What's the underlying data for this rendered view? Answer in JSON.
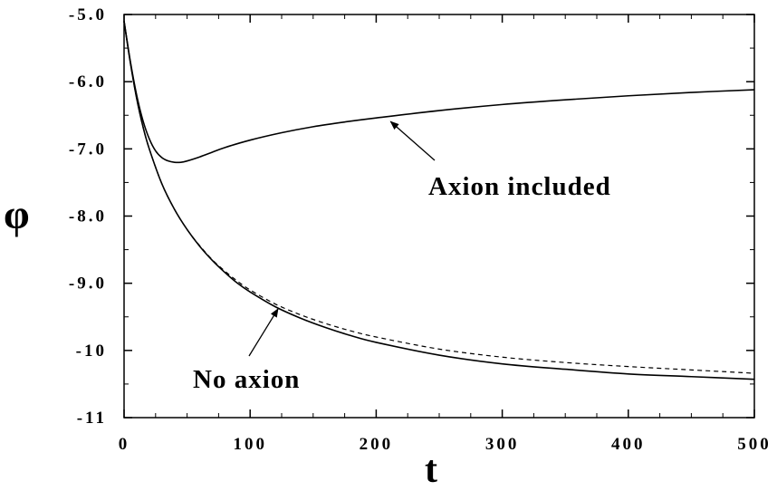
{
  "chart_data": {
    "type": "line",
    "title": "",
    "xlabel": "t",
    "ylabel": "φ",
    "xlim": [
      0,
      500
    ],
    "ylim": [
      -11,
      -5
    ],
    "x_ticks": [
      0,
      100,
      200,
      300,
      400,
      500
    ],
    "x_tick_labels": [
      "0",
      "100",
      "200",
      "300",
      "400",
      "500"
    ],
    "y_ticks": [
      -5,
      -6,
      -7,
      -8,
      -9,
      -10,
      -11
    ],
    "y_tick_labels": [
      "-5.0",
      "-6.0",
      "-7.0",
      "-8.0",
      "-9.0",
      "-10",
      "-11"
    ],
    "grid": false,
    "legend": "none",
    "series": [
      {
        "style": "solid",
        "x": [
          0,
          5,
          10,
          15,
          20,
          25,
          30,
          35,
          40,
          45,
          50,
          60,
          70,
          80,
          100,
          125,
          150,
          175,
          200,
          250,
          300,
          350,
          400,
          450,
          500
        ],
        "y": [
          -5.1,
          -5.7,
          -6.2,
          -6.58,
          -6.85,
          -7.03,
          -7.13,
          -7.18,
          -7.2,
          -7.2,
          -7.18,
          -7.12,
          -7.05,
          -6.98,
          -6.87,
          -6.76,
          -6.67,
          -6.6,
          -6.54,
          -6.43,
          -6.34,
          -6.27,
          -6.21,
          -6.16,
          -6.12
        ]
      },
      {
        "style": "solid",
        "x": [
          0,
          5,
          10,
          15,
          20,
          30,
          40,
          50,
          60,
          70,
          80,
          90,
          100,
          120,
          140,
          160,
          180,
          200,
          250,
          300,
          350,
          400,
          450,
          500
        ],
        "y": [
          -5.1,
          -5.72,
          -6.25,
          -6.67,
          -7.0,
          -7.52,
          -7.9,
          -8.2,
          -8.45,
          -8.66,
          -8.84,
          -9.0,
          -9.13,
          -9.35,
          -9.52,
          -9.66,
          -9.78,
          -9.88,
          -10.07,
          -10.2,
          -10.28,
          -10.35,
          -10.39,
          -10.43
        ]
      },
      {
        "style": "dashed",
        "x": [
          0,
          5,
          10,
          15,
          20,
          30,
          40,
          50,
          60,
          70,
          80,
          90,
          100,
          120,
          140,
          160,
          180,
          200,
          250,
          300,
          350,
          400,
          450,
          500
        ],
        "y": [
          -5.1,
          -5.72,
          -6.25,
          -6.67,
          -7.0,
          -7.52,
          -7.9,
          -8.2,
          -8.44,
          -8.65,
          -8.82,
          -8.97,
          -9.1,
          -9.31,
          -9.47,
          -9.6,
          -9.71,
          -9.8,
          -9.98,
          -10.1,
          -10.18,
          -10.24,
          -10.29,
          -10.34
        ]
      }
    ],
    "annotations": [
      {
        "text": "Axion included",
        "points_to": {
          "x": 210,
          "y": -6.54
        }
      },
      {
        "text": "No axion",
        "points_to": {
          "x": 125,
          "y": -9.3
        }
      }
    ]
  }
}
